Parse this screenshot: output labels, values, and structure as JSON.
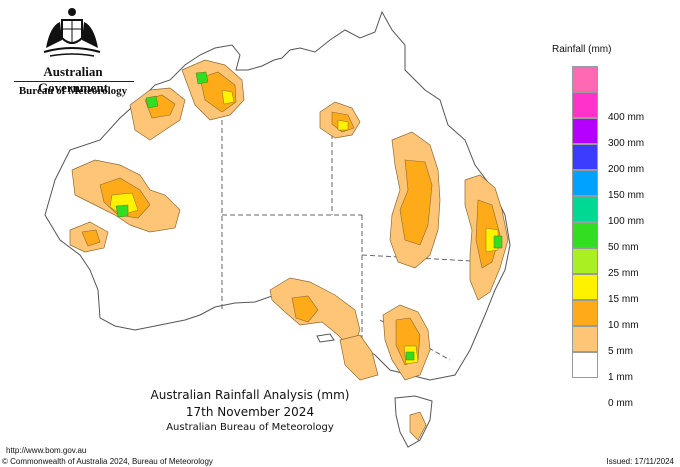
{
  "header": {
    "government": "Australian Government",
    "bureau": "Bureau of Meteorology"
  },
  "legend": {
    "title": "Rainfall (mm)",
    "items": [
      {
        "label": "",
        "color": "#ff69b4"
      },
      {
        "label": "400 mm",
        "color": "#ff33cc"
      },
      {
        "label": "300 mm",
        "color": "#b300ff"
      },
      {
        "label": "200 mm",
        "color": "#3c3cff"
      },
      {
        "label": "150 mm",
        "color": "#00a2ff"
      },
      {
        "label": "100 mm",
        "color": "#00d893"
      },
      {
        "label": "50 mm",
        "color": "#33dd22"
      },
      {
        "label": "25 mm",
        "color": "#aaef22"
      },
      {
        "label": "15 mm",
        "color": "#fff200"
      },
      {
        "label": "10 mm",
        "color": "#ffab19"
      },
      {
        "label": "5 mm",
        "color": "#ffc577"
      },
      {
        "label": "1 mm",
        "color": "#ffffff"
      },
      {
        "label": "0 mm",
        "color": null
      }
    ]
  },
  "map": {
    "title": "Australian Rainfall Analysis (mm)",
    "date": "17th November 2024",
    "agency": "Australian Bureau of Meteorology",
    "colors": {
      "land": "#ffffff",
      "coast": "#555555",
      "border": "#666666"
    }
  },
  "footer": {
    "url": "http://www.bom.gov.au",
    "copyright": "© Commonwealth of Australia 2024, Bureau of Meteorology",
    "issued": "Issued: 17/11/2024"
  }
}
